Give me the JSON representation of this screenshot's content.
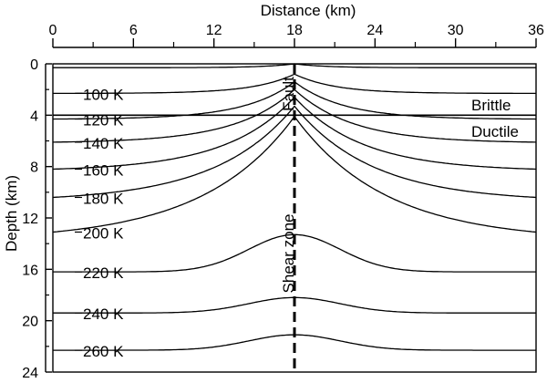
{
  "chart_data": {
    "type": "line",
    "title": "",
    "xlabel": "Distance (km)",
    "ylabel": "Depth (km)",
    "xlim": [
      0,
      36
    ],
    "ylim": [
      0,
      24
    ],
    "y_inverted": true,
    "x_axis_position": "top",
    "x_ticks": [
      0,
      6,
      12,
      18,
      24,
      30,
      36
    ],
    "y_ticks": [
      0,
      4,
      8,
      12,
      16,
      20,
      24
    ],
    "grid": false,
    "legend": "none",
    "isotherm_center_km": 18,
    "isotherms": [
      {
        "label": "",
        "far_depth": 0.3,
        "peak_depth": 0.0
      },
      {
        "label": "100 K",
        "far_depth": 2.3,
        "peak_depth": 0.8
      },
      {
        "label": "120 K",
        "far_depth": 4.3,
        "peak_depth": 1.4
      },
      {
        "label": "140 K",
        "far_depth": 6.1,
        "peak_depth": 2.0
      },
      {
        "label": "160 K",
        "far_depth": 8.2,
        "peak_depth": 2.6
      },
      {
        "label": "180 K",
        "far_depth": 10.4,
        "peak_depth": 3.3
      },
      {
        "label": "200 K",
        "far_depth": 13.1,
        "peak_depth": 4.1
      },
      {
        "label": "220 K",
        "far_depth": 16.2,
        "peak_depth": 13.3
      },
      {
        "label": "240 K",
        "far_depth": 19.4,
        "peak_depth": 18.2
      },
      {
        "label": "260 K",
        "far_depth": 22.3,
        "peak_depth": 21.1
      }
    ],
    "boundary_depth": 4,
    "annotations": {
      "brittle": "Brittle",
      "ductile": "Ductile",
      "fault": "Fault",
      "shear_zone": "Shear zone"
    }
  }
}
